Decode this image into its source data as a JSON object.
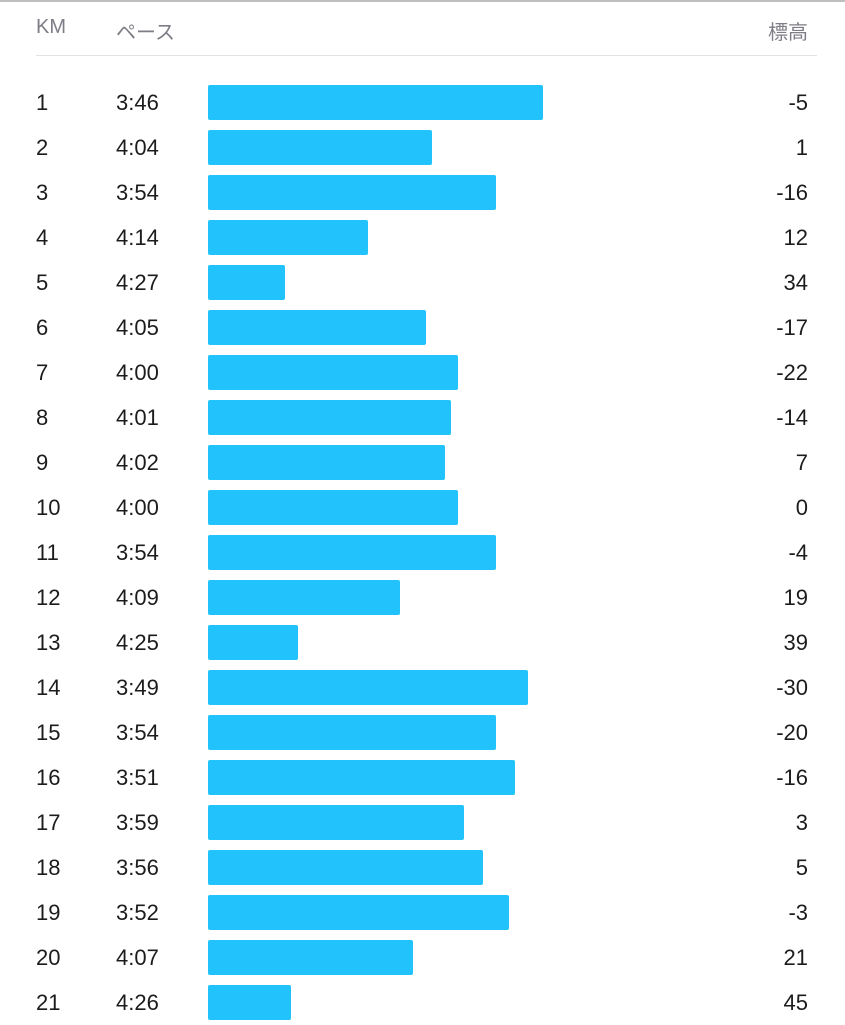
{
  "header": {
    "km_label": "KM",
    "pace_label": "ペース",
    "elevation_label": "標高"
  },
  "splits": [
    {
      "km": "1",
      "pace": "3:46",
      "pace_seconds": 226,
      "elevation": "-5"
    },
    {
      "km": "2",
      "pace": "4:04",
      "pace_seconds": 244,
      "elevation": "1"
    },
    {
      "km": "3",
      "pace": "3:54",
      "pace_seconds": 234,
      "elevation": "-16"
    },
    {
      "km": "4",
      "pace": "4:14",
      "pace_seconds": 254,
      "elevation": "12"
    },
    {
      "km": "5",
      "pace": "4:27",
      "pace_seconds": 267,
      "elevation": "34"
    },
    {
      "km": "6",
      "pace": "4:05",
      "pace_seconds": 245,
      "elevation": "-17"
    },
    {
      "km": "7",
      "pace": "4:00",
      "pace_seconds": 240,
      "elevation": "-22"
    },
    {
      "km": "8",
      "pace": "4:01",
      "pace_seconds": 241,
      "elevation": "-14"
    },
    {
      "km": "9",
      "pace": "4:02",
      "pace_seconds": 242,
      "elevation": "7"
    },
    {
      "km": "10",
      "pace": "4:00",
      "pace_seconds": 240,
      "elevation": "0"
    },
    {
      "km": "11",
      "pace": "3:54",
      "pace_seconds": 234,
      "elevation": "-4"
    },
    {
      "km": "12",
      "pace": "4:09",
      "pace_seconds": 249,
      "elevation": "19"
    },
    {
      "km": "13",
      "pace": "4:25",
      "pace_seconds": 265,
      "elevation": "39"
    },
    {
      "km": "14",
      "pace": "3:49",
      "pace_seconds": 229,
      "elevation": "-30"
    },
    {
      "km": "15",
      "pace": "3:54",
      "pace_seconds": 234,
      "elevation": "-20"
    },
    {
      "km": "16",
      "pace": "3:51",
      "pace_seconds": 231,
      "elevation": "-16"
    },
    {
      "km": "17",
      "pace": "3:59",
      "pace_seconds": 239,
      "elevation": "3"
    },
    {
      "km": "18",
      "pace": "3:56",
      "pace_seconds": 236,
      "elevation": "5"
    },
    {
      "km": "19",
      "pace": "3:52",
      "pace_seconds": 232,
      "elevation": "-3"
    },
    {
      "km": "20",
      "pace": "4:07",
      "pace_seconds": 247,
      "elevation": "21"
    },
    {
      "km": "21",
      "pace": "4:26",
      "pace_seconds": 266,
      "elevation": "45"
    }
  ],
  "colors": {
    "bar": "#22c2fd",
    "header_text": "#7d7d86",
    "text": "#1c1c1e"
  }
}
